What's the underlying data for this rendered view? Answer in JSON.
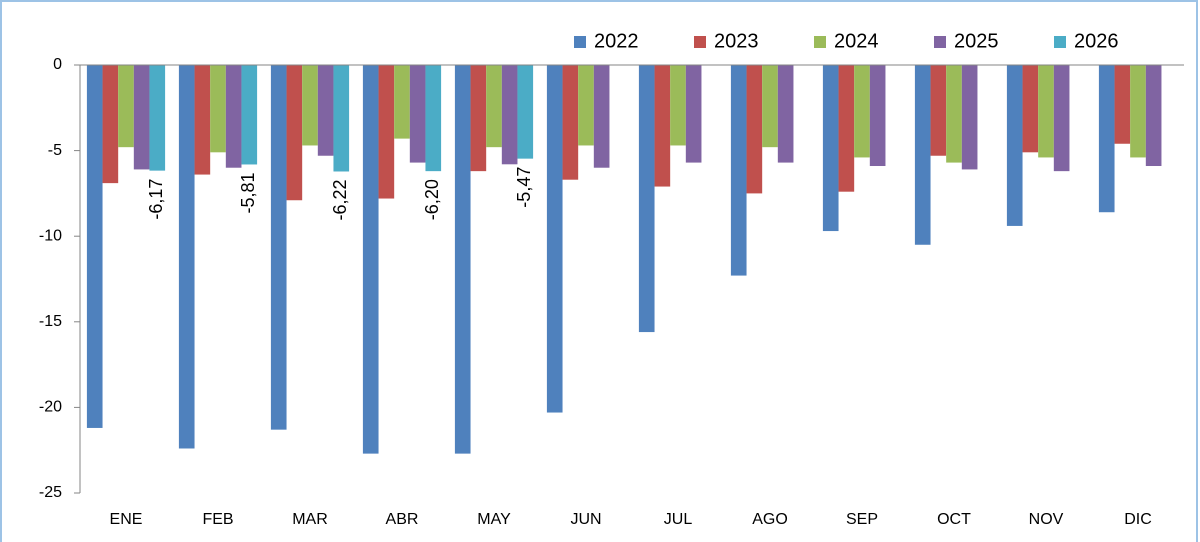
{
  "chart_data": {
    "type": "bar",
    "categories": [
      "ENE",
      "FEB",
      "MAR",
      "ABR",
      "MAY",
      "JUN",
      "JUL",
      "AGO",
      "SEP",
      "OCT",
      "NOV",
      "DIC"
    ],
    "series": [
      {
        "name": "2022",
        "color": "#4f81bd",
        "values": [
          -21.2,
          -22.4,
          -21.3,
          -22.7,
          -22.7,
          -20.3,
          -15.6,
          -12.3,
          -9.7,
          -10.5,
          -9.4,
          -8.6
        ]
      },
      {
        "name": "2023",
        "color": "#c0504d",
        "values": [
          -6.9,
          -6.4,
          -7.9,
          -7.8,
          -6.2,
          -6.7,
          -7.1,
          -7.5,
          -7.4,
          -5.3,
          -5.1,
          -4.6
        ]
      },
      {
        "name": "2024",
        "color": "#9bbb59",
        "values": [
          -4.8,
          -5.1,
          -4.7,
          -4.3,
          -4.8,
          -4.7,
          -4.7,
          -4.8,
          -5.4,
          -5.7,
          -5.4,
          -5.4
        ]
      },
      {
        "name": "2025",
        "color": "#8064a2",
        "values": [
          -6.1,
          -6.0,
          -5.3,
          -5.7,
          -5.8,
          -6.0,
          -5.7,
          -5.7,
          -5.9,
          -6.1,
          -6.2,
          -5.9
        ]
      },
      {
        "name": "2026",
        "color": "#4bacc6",
        "values": [
          -6.17,
          -5.81,
          -6.22,
          -6.2,
          -5.47,
          null,
          null,
          null,
          null,
          null,
          null,
          null
        ],
        "value_labels": [
          "-6,17",
          "-5,81",
          "-6,22",
          "-6,20",
          "-5,47",
          null,
          null,
          null,
          null,
          null,
          null,
          null
        ]
      }
    ],
    "ylim": [
      -25,
      0
    ],
    "yticks": [
      0,
      -5,
      -10,
      -15,
      -20,
      -25
    ],
    "grid": false,
    "legend": "top-right"
  }
}
